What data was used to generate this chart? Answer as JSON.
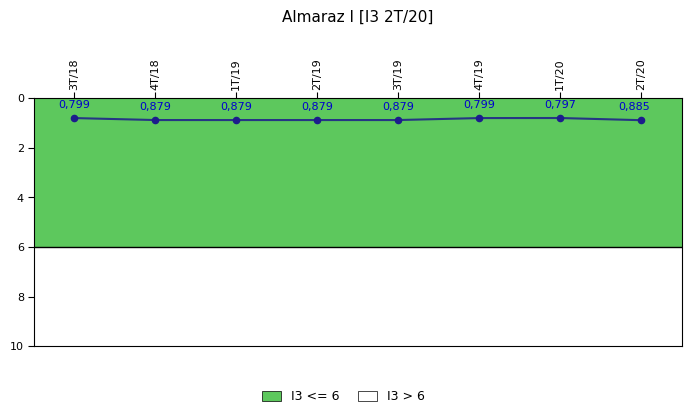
{
  "title": "Almaraz I [I3 2T/20]",
  "x_labels": [
    "3T/18",
    "4T/18",
    "1T/19",
    "2T/19",
    "3T/19",
    "4T/19",
    "1T/20",
    "2T/20"
  ],
  "y_values": [
    0.799,
    0.879,
    0.879,
    0.879,
    0.879,
    0.799,
    0.797,
    0.885
  ],
  "y_labels_display": [
    "0,799",
    "0,879",
    "0,879",
    "0,879",
    "0,879",
    "0,799",
    "0,797",
    "0,885"
  ],
  "ylim": [
    0,
    10
  ],
  "y_invert": true,
  "threshold": 6,
  "green_color": "#5DC85D",
  "line_color": "#1C1C8C",
  "point_color": "#1C1C8C",
  "label_color": "#0000CC",
  "background_color": "#ffffff",
  "plot_bg_color": "#ffffff",
  "legend_green_label": "I3 <= 6",
  "legend_white_label": "I3 > 6",
  "title_fontsize": 11,
  "tick_fontsize": 8,
  "label_fontsize": 8
}
